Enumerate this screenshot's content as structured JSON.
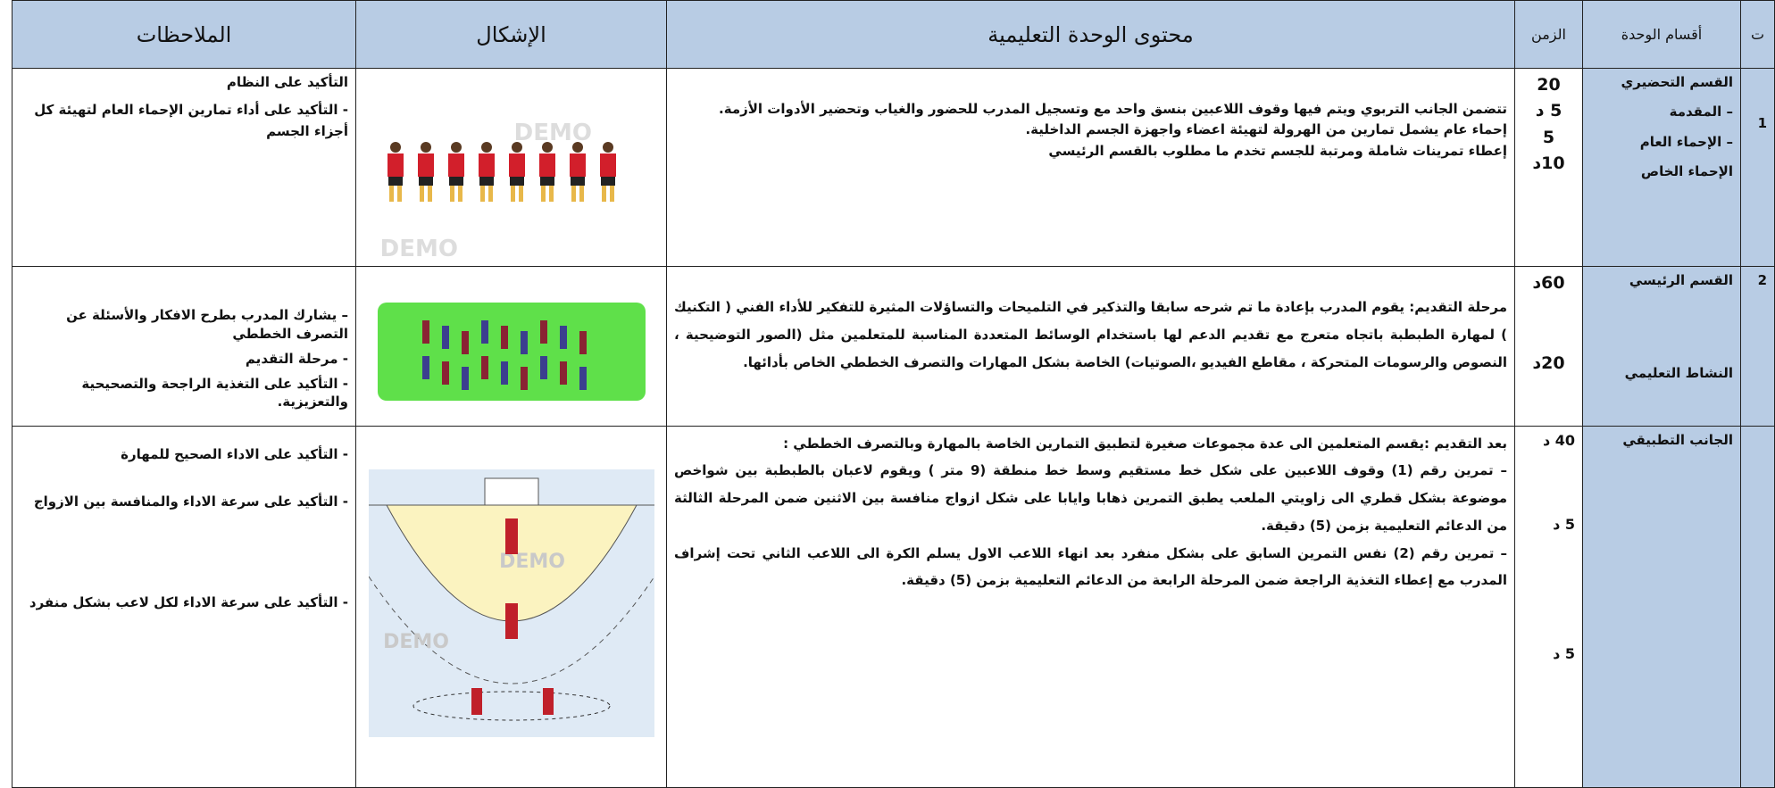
{
  "header": {
    "number": "ت",
    "section": "أقسام الوحدة",
    "time": "الزمن",
    "content": "محتوى الوحدة التعليمية",
    "figures": "الإشكال",
    "notes": "الملاحظات"
  },
  "rows": [
    {
      "number": "1",
      "section": [
        "القسم التحضيري",
        "– المقدمة",
        "– الإحماء العام",
        "الإحماء الخاص"
      ],
      "time": [
        "20",
        "5 د",
        "5",
        "10د"
      ],
      "content": [
        "تتضمن الجانب التربوي ويتم فيها وقوف اللاعبين  بنسق واحد مع  وتسجيل المدرب للحضور والغياب وتحضير الأدوات الأزمة.",
        "إحماء عام  يشمل تمارين من الهرولة لتهيئة اعضاء واجهزة الجسم الداخلية.",
        "إعطاء تمرينات شاملة ومرتبة للجسم تخدم ما مطلوب بالقسم الرئيسي"
      ],
      "figure_watermark": "DEMO",
      "notes": [
        "التأكيد على النظام",
        "- التأكيد على أداء تمارين الإحماء العام لتهيئة كل أجزاء الجسم"
      ]
    },
    {
      "number": "2",
      "section": [
        "القسم الرئيسي",
        "النشاط التعليمي"
      ],
      "time": [
        "60د",
        "20د"
      ],
      "content": [
        "مرحلة التقديم: يقوم المدرب بإعادة ما تم شرحه سابقا والتذكير في التلميحات والتساؤلات المثيرة للتفكير للأداء الفني ( التكنيك ) لمهارة الطبطبة باتجاه متعرج مع  تقديم الدعم لها باستخدام الوسائط المتعددة المناسبة للمتعلمين مثل (الصور التوضيحية ، النصوص والرسومات المتحركة ، مقاطع الفيديو ،الصوتيات) الخاصة بشكل المهارات والتصرف الخططي الخاص بأدائها."
      ],
      "notes": [
        "–  يشارك المدرب بطرح الافكار والأسئلة عن التصرف الخططي",
        "- مرحلة التقديم",
        "- التأكيد على التغذية الراجحة والتصحيحية والتعزيزية."
      ]
    },
    {
      "section": [
        "الجانب التطبيقي"
      ],
      "time": [
        "40 د",
        "5 د",
        "5 د"
      ],
      "content": [
        "بعد التقديم :يقسم المتعلمين الى عدة مجموعات صغيرة لتطبيق التمارين الخاصة بالمهارة وبالتصرف الخططي :",
        "– تمرين رقم (1) وقوف اللاعبين على شكل خط مستقيم وسط خط منطقة (9 متر ) ويقوم لاعبان بالطبطبة بين شواخص موضوعة بشكل قطري الى زاويتي الملعب يطبق التمرين  ذهابا وايابا على شكل ازواج  منافسة بين الاثنين ضمن المرحلة الثالثة من الدعائم التعليمية  بزمن (5) دقيقة.",
        "– تمرين رقم (2) نفس التمرين السابق على بشكل منفرد  بعد انهاء اللاعب الاول يسلم الكرة الى اللاعب الثاني تحت إشراف المدرب مع إعطاء التغذية الراجعة ضمن المرحلة الرابعة من الدعائم التعليمية  بزمن (5) دقيقة."
      ],
      "figure_watermark": "DEMO",
      "notes": [
        "- التأكيد على الاداء الصحيح للمهارة",
        "- التأكيد على سرعة الاداء والمنافسة  بين الازواج",
        "- التأكيد على سرعة الاداء  لكل لاعب بشكل منفرد"
      ]
    }
  ]
}
